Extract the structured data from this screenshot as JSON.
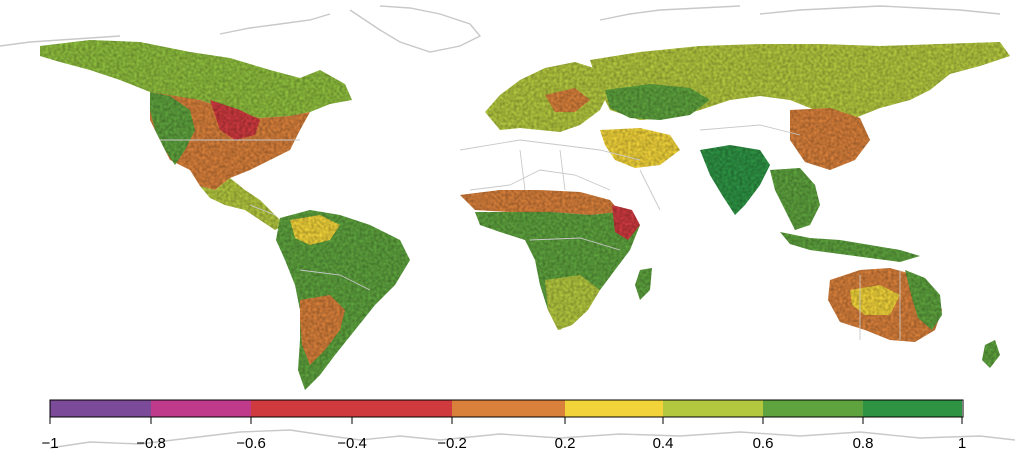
{
  "colorbar": {
    "ticks": [
      "−1",
      "−0.8",
      "−0.6",
      "−0.4",
      "−0.2",
      "0.2",
      "0.4",
      "0.6",
      "0.8",
      "1"
    ],
    "bins": [
      {
        "from": -1.0,
        "to": -0.8,
        "color": "#7b4a98"
      },
      {
        "from": -0.8,
        "to": -0.6,
        "color": "#c03a8c"
      },
      {
        "from": -0.6,
        "to": -0.2,
        "color": "#cf3a3f"
      },
      {
        "from": -0.2,
        "to": 0.2,
        "color": "#d9803b"
      },
      {
        "from": 0.2,
        "to": 0.4,
        "color": "#f2d43a"
      },
      {
        "from": 0.4,
        "to": 0.6,
        "color": "#b4c83f"
      },
      {
        "from": 0.6,
        "to": 0.8,
        "color": "#5ea33e"
      },
      {
        "from": 0.8,
        "to": 1.0,
        "color": "#2e9444"
      }
    ]
  },
  "colors": {
    "coastline": "#c8c8c8",
    "background": "#ffffff"
  }
}
